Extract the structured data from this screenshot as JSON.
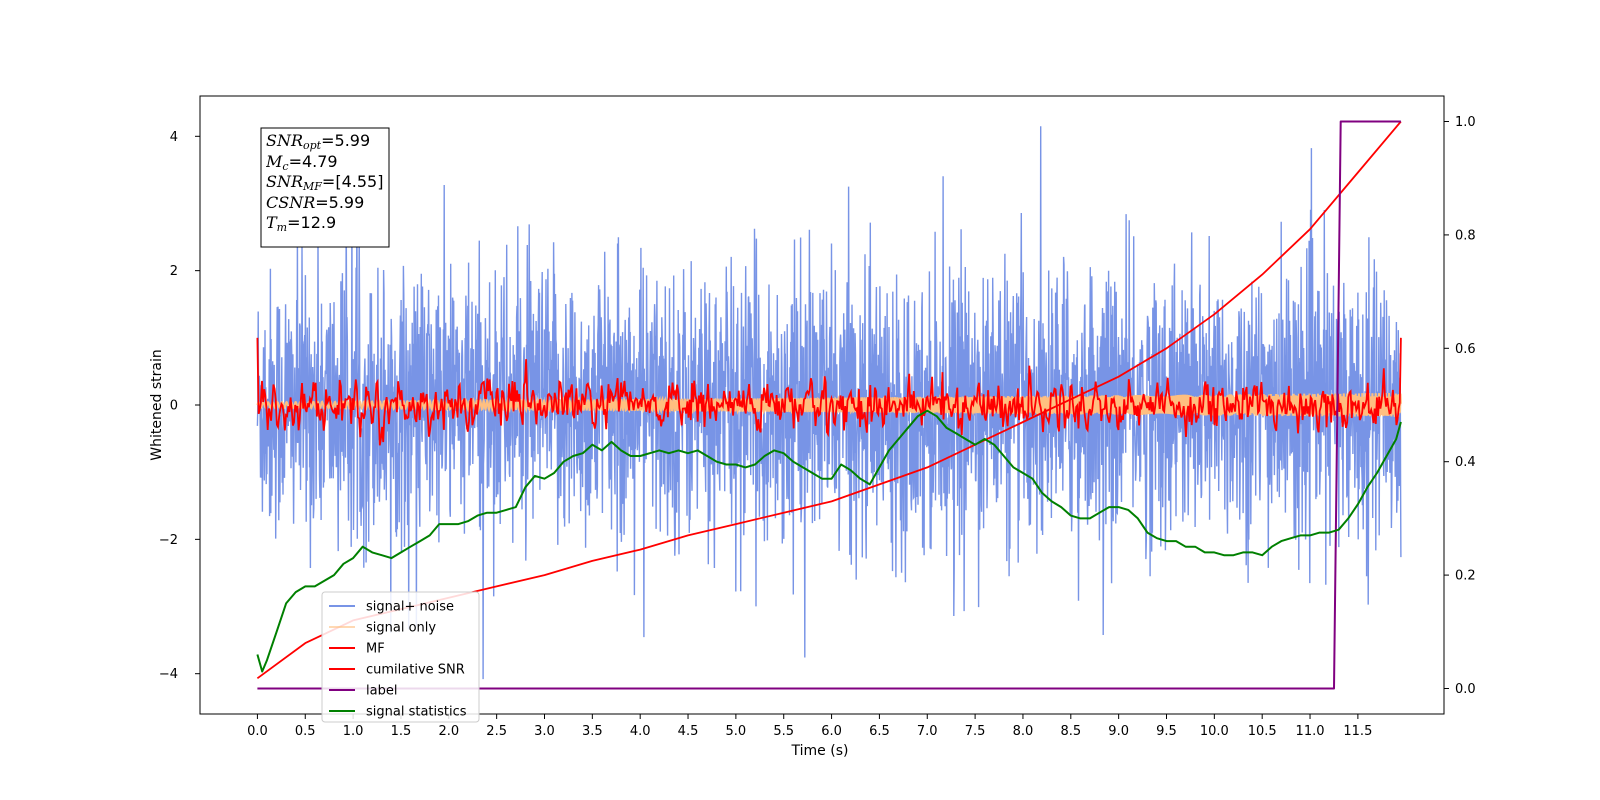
{
  "chart_data": {
    "type": "line",
    "xlabel": "Time (s)",
    "ylabel": "Whitened strain",
    "xlim": [
      -0.6,
      12.4
    ],
    "ylim": [
      -4.6,
      4.6
    ],
    "y2lim": [
      -0.045,
      1.045
    ],
    "x_ticks": [
      "0.0",
      "0.5",
      "1.0",
      "1.5",
      "2.0",
      "2.5",
      "3.0",
      "3.5",
      "4.0",
      "4.5",
      "5.0",
      "5.5",
      "6.0",
      "6.5",
      "7.0",
      "7.5",
      "8.0",
      "8.5",
      "9.0",
      "9.5",
      "10.0",
      "10.5",
      "11.0",
      "11.5"
    ],
    "y_ticks": [
      "4",
      "2",
      "0",
      "−2",
      "−4"
    ],
    "y2_ticks": [
      "1.0",
      "0.8",
      "0.6",
      "0.4",
      "0.2",
      "0.0"
    ],
    "grid": false,
    "legend_position": "lower-left",
    "annotation": {
      "snr_opt": "=5.99",
      "mc": "=4.79",
      "snr_mf": "=[4.55]",
      "csnr": "=5.99",
      "tm": "=12.9"
    },
    "series": [
      {
        "name": "signal+ noise",
        "axis": "left",
        "color": "#7894e6",
        "description_values": {
          "std": 1.1,
          "min": -4.15,
          "max": 4.15
        }
      },
      {
        "name": "signal only",
        "axis": "left",
        "color": "#ffbf80",
        "amplitude_start": 0.04,
        "amplitude_end": 0.18
      },
      {
        "name": "MF",
        "axis": "left",
        "color": "#ff0000",
        "start_value": 1.0,
        "end_value": 1.0,
        "std": 0.17
      },
      {
        "name": "cumilative SNR",
        "axis": "right",
        "color": "#ff0000",
        "x": [
          0.0,
          0.5,
          1.0,
          1.5,
          2.0,
          2.5,
          3.0,
          3.5,
          4.0,
          4.5,
          5.0,
          5.5,
          6.0,
          6.5,
          7.0,
          7.5,
          8.0,
          8.5,
          9.0,
          9.5,
          10.0,
          10.5,
          11.0,
          11.5,
          11.95
        ],
        "values": [
          0.018,
          0.08,
          0.12,
          0.14,
          0.16,
          0.18,
          0.2,
          0.225,
          0.245,
          0.27,
          0.29,
          0.31,
          0.33,
          0.36,
          0.39,
          0.43,
          0.47,
          0.51,
          0.55,
          0.6,
          0.66,
          0.73,
          0.81,
          0.91,
          1.0
        ]
      },
      {
        "name": "label",
        "axis": "right",
        "color": "#800080",
        "x": [
          0.0,
          11.25,
          11.32,
          11.95
        ],
        "values": [
          0.0,
          0.0,
          1.0,
          1.0
        ]
      },
      {
        "name": "signal statistics",
        "axis": "right",
        "color": "#008000",
        "x": [
          0.0,
          0.05,
          0.1,
          0.2,
          0.3,
          0.4,
          0.5,
          0.6,
          0.7,
          0.8,
          0.9,
          1.0,
          1.1,
          1.2,
          1.3,
          1.4,
          1.5,
          1.6,
          1.7,
          1.8,
          1.9,
          2.0,
          2.1,
          2.2,
          2.3,
          2.4,
          2.5,
          2.6,
          2.7,
          2.8,
          2.9,
          3.0,
          3.1,
          3.2,
          3.3,
          3.4,
          3.5,
          3.6,
          3.7,
          3.8,
          3.9,
          4.0,
          4.1,
          4.2,
          4.3,
          4.4,
          4.5,
          4.6,
          4.7,
          4.8,
          4.9,
          5.0,
          5.1,
          5.2,
          5.3,
          5.4,
          5.5,
          5.6,
          5.7,
          5.8,
          5.9,
          6.0,
          6.1,
          6.2,
          6.3,
          6.4,
          6.5,
          6.6,
          6.7,
          6.8,
          6.9,
          7.0,
          7.1,
          7.2,
          7.3,
          7.4,
          7.5,
          7.6,
          7.7,
          7.8,
          7.9,
          8.0,
          8.1,
          8.2,
          8.3,
          8.4,
          8.5,
          8.6,
          8.7,
          8.8,
          8.9,
          9.0,
          9.1,
          9.2,
          9.3,
          9.4,
          9.5,
          9.6,
          9.7,
          9.8,
          9.9,
          10.0,
          10.1,
          10.2,
          10.3,
          10.4,
          10.5,
          10.6,
          10.7,
          10.8,
          10.9,
          11.0,
          11.1,
          11.2,
          11.3,
          11.4,
          11.5,
          11.6,
          11.7,
          11.8,
          11.9,
          11.95
        ],
        "values": [
          0.06,
          0.03,
          0.05,
          0.1,
          0.15,
          0.17,
          0.18,
          0.18,
          0.19,
          0.2,
          0.22,
          0.23,
          0.25,
          0.24,
          0.235,
          0.23,
          0.24,
          0.25,
          0.26,
          0.27,
          0.29,
          0.29,
          0.29,
          0.295,
          0.305,
          0.31,
          0.31,
          0.315,
          0.32,
          0.355,
          0.375,
          0.37,
          0.38,
          0.4,
          0.41,
          0.415,
          0.43,
          0.42,
          0.435,
          0.42,
          0.41,
          0.41,
          0.415,
          0.42,
          0.415,
          0.42,
          0.415,
          0.42,
          0.41,
          0.4,
          0.395,
          0.395,
          0.39,
          0.395,
          0.41,
          0.42,
          0.415,
          0.4,
          0.39,
          0.38,
          0.37,
          0.37,
          0.395,
          0.385,
          0.37,
          0.36,
          0.39,
          0.42,
          0.44,
          0.46,
          0.48,
          0.49,
          0.48,
          0.46,
          0.45,
          0.44,
          0.43,
          0.44,
          0.43,
          0.41,
          0.39,
          0.38,
          0.37,
          0.345,
          0.33,
          0.32,
          0.305,
          0.3,
          0.3,
          0.31,
          0.32,
          0.32,
          0.315,
          0.3,
          0.275,
          0.265,
          0.26,
          0.26,
          0.25,
          0.25,
          0.24,
          0.24,
          0.235,
          0.235,
          0.24,
          0.24,
          0.235,
          0.25,
          0.26,
          0.265,
          0.27,
          0.27,
          0.275,
          0.275,
          0.28,
          0.3,
          0.325,
          0.355,
          0.38,
          0.41,
          0.44,
          0.47
        ]
      }
    ]
  }
}
